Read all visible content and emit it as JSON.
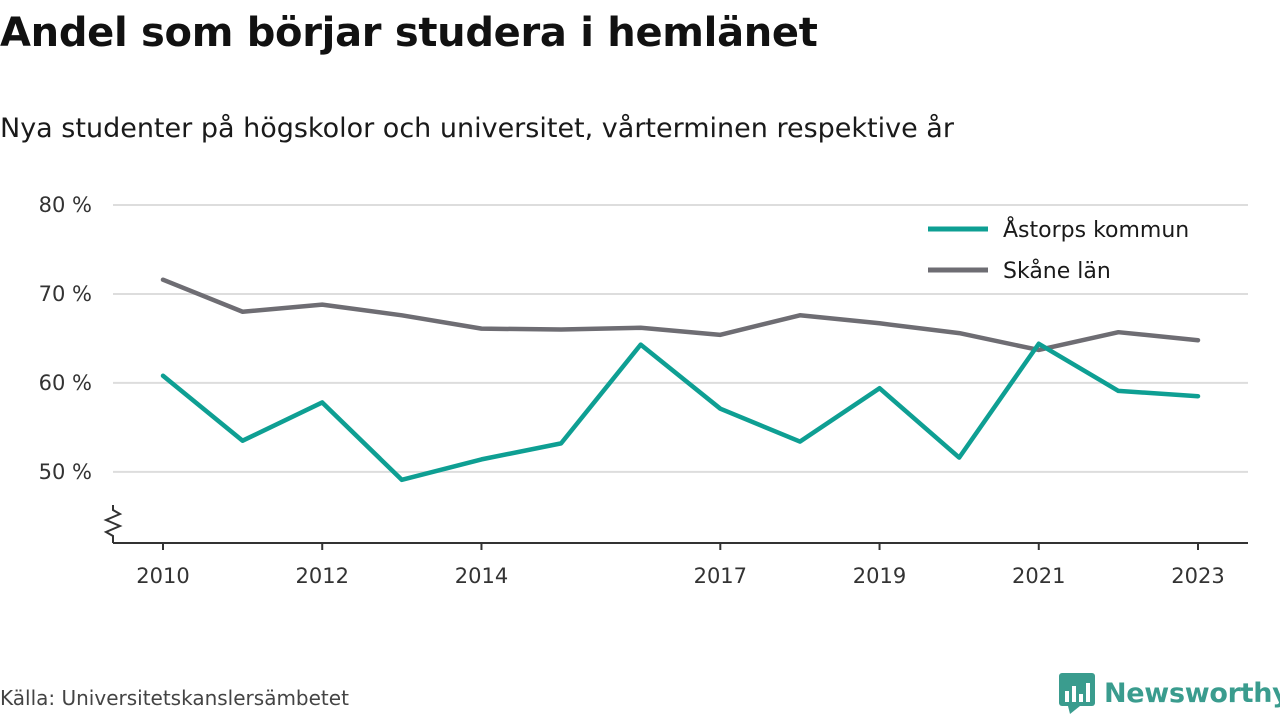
{
  "header": {
    "title": "Andel som börjar studera i hemlänet",
    "subtitle": "Nya studenter på högskolor och universitet, vårterminen respektive år"
  },
  "footer": {
    "source": "Källa: Universitetskanslersämbetet",
    "brand": "Newsworthy"
  },
  "colors": {
    "teal": "#0e9f93",
    "gray": "#6e6d73",
    "grid": "#dddddd",
    "brand": "#3a9c8e"
  },
  "chart_data": {
    "type": "line",
    "x": [
      2010,
      2011,
      2012,
      2013,
      2014,
      2015,
      2016,
      2017,
      2018,
      2019,
      2020,
      2021,
      2022,
      2023
    ],
    "x_tick_labels": [
      "2010",
      "2012",
      "2014",
      "2017",
      "2019",
      "2021",
      "2023"
    ],
    "y_ticks": [
      50,
      60,
      70,
      80
    ],
    "y_tick_labels": [
      "50 %",
      "60 %",
      "70 %",
      "80 %"
    ],
    "ylim": [
      42,
      80
    ],
    "y_axis_break": true,
    "grid": true,
    "legend_position": "top-right",
    "series": [
      {
        "name": "Åstorps kommun",
        "color": "#0e9f93",
        "values": [
          60.8,
          53.5,
          57.8,
          49.1,
          51.4,
          53.2,
          64.3,
          57.1,
          53.4,
          59.4,
          51.6,
          64.4,
          59.1,
          58.5
        ]
      },
      {
        "name": "Skåne län",
        "color": "#6e6d73",
        "values": [
          71.6,
          68.0,
          68.8,
          67.6,
          66.1,
          66.0,
          66.2,
          65.4,
          67.6,
          66.7,
          65.6,
          63.7,
          65.7,
          64.8
        ]
      }
    ]
  }
}
